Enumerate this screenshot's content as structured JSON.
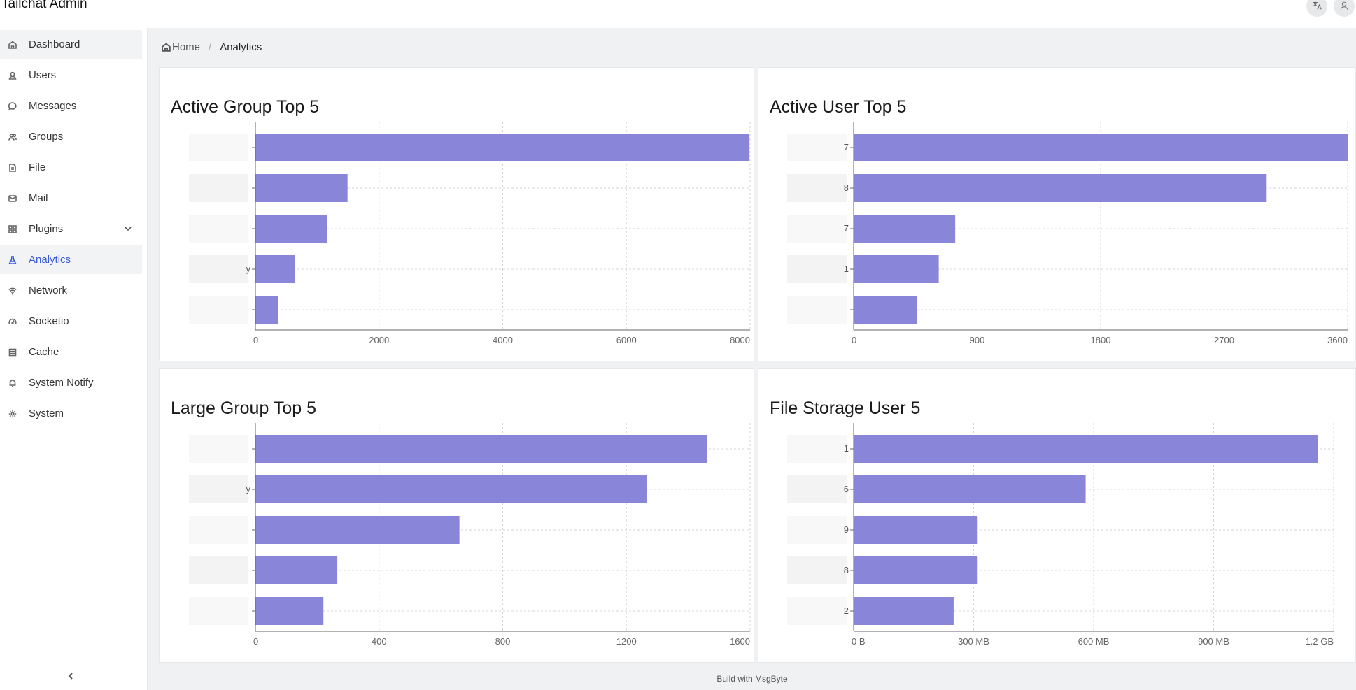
{
  "header": {
    "title": "Tailchat Admin"
  },
  "sidebar": {
    "items": [
      {
        "label": "Dashboard",
        "icon": "home-icon"
      },
      {
        "label": "Users",
        "icon": "user-icon"
      },
      {
        "label": "Messages",
        "icon": "message-icon"
      },
      {
        "label": "Groups",
        "icon": "group-icon"
      },
      {
        "label": "File",
        "icon": "file-icon"
      },
      {
        "label": "Mail",
        "icon": "mail-icon"
      },
      {
        "label": "Plugins",
        "icon": "apps-icon"
      },
      {
        "label": "Analytics",
        "icon": "flask-icon"
      },
      {
        "label": "Network",
        "icon": "wifi-icon"
      },
      {
        "label": "Socketio",
        "icon": "gauge-icon"
      },
      {
        "label": "Cache",
        "icon": "storage-icon"
      },
      {
        "label": "System Notify",
        "icon": "bell-icon"
      },
      {
        "label": "System",
        "icon": "settings-icon"
      }
    ],
    "active": "Analytics"
  },
  "breadcrumb": {
    "home": "Home",
    "current": "Analytics"
  },
  "footer": "Build with MsgByte",
  "colors": {
    "bar": "#8985d9",
    "accent": "#3a5bd9"
  },
  "chart_data": [
    {
      "type": "bar",
      "orientation": "horizontal",
      "title": "Active Group Top 5",
      "categories": [
        "",
        "",
        "",
        "",
        ""
      ],
      "category_label_tails": [
        "",
        "",
        "",
        "y",
        ""
      ],
      "values": [
        7990,
        1490,
        1160,
        640,
        370
      ],
      "xlim": [
        0,
        8000
      ],
      "ticks": [
        "0",
        "2000",
        "4000",
        "6000",
        "8000"
      ],
      "grid": true
    },
    {
      "type": "bar",
      "orientation": "horizontal",
      "title": "Active User Top 5",
      "categories": [
        "",
        "",
        "",
        "",
        ""
      ],
      "category_label_tails": [
        "7",
        "8",
        "7",
        "1",
        ""
      ],
      "values": [
        3600,
        3010,
        740,
        620,
        460
      ],
      "xlim": [
        0,
        3600
      ],
      "ticks": [
        "0",
        "900",
        "1800",
        "2700",
        "3600"
      ],
      "grid": true
    },
    {
      "type": "bar",
      "orientation": "horizontal",
      "title": "Large Group Top 5",
      "categories": [
        "",
        "",
        "",
        "",
        ""
      ],
      "category_label_tails": [
        "",
        "y",
        "",
        "",
        ""
      ],
      "values": [
        1460,
        1265,
        660,
        265,
        220
      ],
      "xlim": [
        0,
        1600
      ],
      "ticks": [
        "0",
        "400",
        "800",
        "1200",
        "1600"
      ],
      "grid": true
    },
    {
      "type": "bar",
      "orientation": "horizontal",
      "title": "File Storage User 5",
      "categories": [
        "",
        "",
        "",
        "",
        ""
      ],
      "category_label_tails": [
        "1",
        "6",
        "9",
        "8",
        "2"
      ],
      "values": [
        1.16,
        0.58,
        0.31,
        0.31,
        0.25
      ],
      "value_unit": "GB",
      "xlim": [
        0,
        1.2
      ],
      "ticks": [
        "0 B",
        "300 MB",
        "600 MB",
        "900 MB",
        "1.2 GB"
      ],
      "grid": true
    }
  ]
}
